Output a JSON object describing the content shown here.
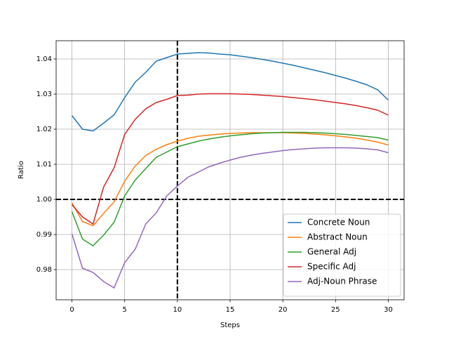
{
  "chart_data": {
    "type": "line",
    "x": [
      0,
      1,
      2,
      3,
      4,
      5,
      6,
      7,
      8,
      9,
      10,
      11,
      12,
      13,
      14,
      15,
      16,
      17,
      18,
      19,
      20,
      21,
      22,
      23,
      24,
      25,
      26,
      27,
      28,
      29,
      30
    ],
    "series": [
      {
        "name": "Concrete Noun",
        "color": "#1f77b4",
        "values": [
          1.0239,
          1.02,
          1.0195,
          1.0217,
          1.0241,
          1.029,
          1.0334,
          1.0362,
          1.0394,
          1.0404,
          1.0414,
          1.0416,
          1.0418,
          1.0417,
          1.0414,
          1.0412,
          1.0408,
          1.0404,
          1.0399,
          1.0394,
          1.0388,
          1.0382,
          1.0375,
          1.0368,
          1.0361,
          1.0353,
          1.0345,
          1.0336,
          1.0326,
          1.0312,
          1.0283
        ]
      },
      {
        "name": "Abstract Noun",
        "color": "#ff7f0e",
        "values": [
          0.999,
          0.9937,
          0.9925,
          0.996,
          0.9993,
          1.0052,
          1.0095,
          1.0125,
          1.0143,
          1.0156,
          1.0166,
          1.0174,
          1.018,
          1.0183,
          1.0186,
          1.0188,
          1.0189,
          1.019,
          1.019,
          1.019,
          1.019,
          1.0189,
          1.0188,
          1.0186,
          1.0184,
          1.0181,
          1.0178,
          1.0174,
          1.0169,
          1.0163,
          1.0155
        ]
      },
      {
        "name": "General Adj",
        "color": "#2ca02c",
        "values": [
          0.9965,
          0.9887,
          0.9868,
          0.9898,
          0.9935,
          1.001,
          1.0055,
          1.0088,
          1.012,
          1.0135,
          1.015,
          1.0158,
          1.0166,
          1.0172,
          1.0177,
          1.0181,
          1.0184,
          1.0187,
          1.0189,
          1.019,
          1.0191,
          1.0191,
          1.0191,
          1.019,
          1.0189,
          1.0187,
          1.0185,
          1.0182,
          1.0179,
          1.0176,
          1.0169
        ]
      },
      {
        "name": "Specific Adj",
        "color": "#d62728",
        "values": [
          0.9985,
          0.995,
          0.993,
          1.0035,
          1.009,
          1.0185,
          1.0228,
          1.0258,
          1.0276,
          1.0285,
          1.0296,
          1.0297,
          1.03,
          1.0301,
          1.0301,
          1.0301,
          1.03,
          1.0299,
          1.0297,
          1.0295,
          1.0293,
          1.029,
          1.0287,
          1.0284,
          1.028,
          1.0276,
          1.0272,
          1.0267,
          1.0261,
          1.0254,
          1.024
        ]
      },
      {
        "name": "Adj-Noun Phrase",
        "color": "#9467bd",
        "values": [
          0.9902,
          0.9804,
          0.9792,
          0.9766,
          0.9748,
          0.982,
          0.9858,
          0.993,
          0.9962,
          1.001,
          1.0038,
          1.0063,
          1.0078,
          1.0093,
          1.0103,
          1.0112,
          1.012,
          1.0126,
          1.0131,
          1.0135,
          1.0139,
          1.0142,
          1.0144,
          1.0146,
          1.0147,
          1.0147,
          1.0147,
          1.0146,
          1.0144,
          1.0141,
          1.0133
        ]
      }
    ],
    "xlabel": "Steps",
    "ylabel": "Ratio",
    "xlim": [
      -1.5,
      31.5
    ],
    "ylim": [
      0.9714,
      1.0452
    ],
    "xticks": [
      0,
      5,
      10,
      15,
      20,
      25,
      30
    ],
    "yticks": [
      0.98,
      0.99,
      {
        "value": 1,
        "label": "1.00"
      },
      1.01,
      1.02,
      1.03,
      1.04
    ],
    "hlines": [
      1
    ],
    "vlines": [
      10
    ],
    "reference_color": "#000000",
    "grid": true,
    "legend": "lower right"
  }
}
